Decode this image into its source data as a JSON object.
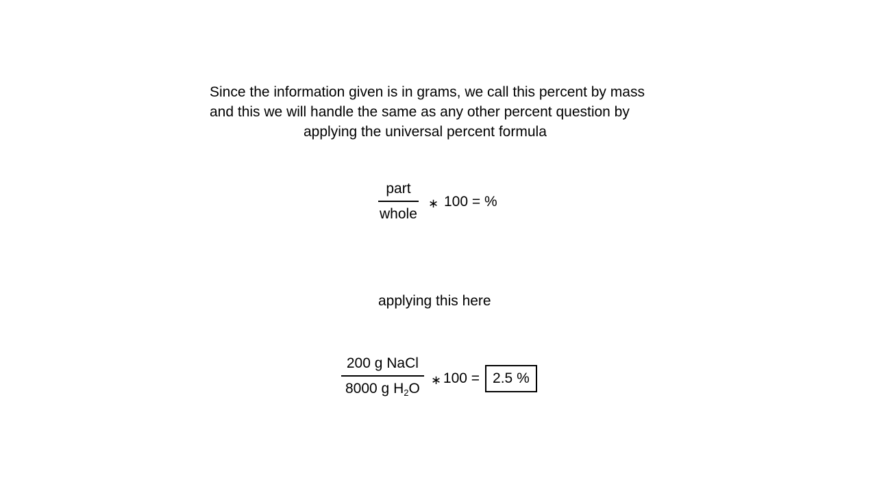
{
  "paragraph": {
    "line1": "Since the information given is in grams, we call this percent by mass",
    "line2": "and this we will handle the same as any other percent question by",
    "line3": "applying the universal percent formula"
  },
  "formula1": {
    "numerator": "part",
    "denominator": "whole",
    "star": "∗",
    "rhs": "100 = %"
  },
  "caption": "applying this here",
  "formula2": {
    "numerator": "200 g NaCl",
    "denominator_prefix": "8000 g H",
    "denominator_subscript": "2",
    "denominator_suffix": "O",
    "star": "∗",
    "rhs": "100 =",
    "answer": "2.5 %"
  }
}
